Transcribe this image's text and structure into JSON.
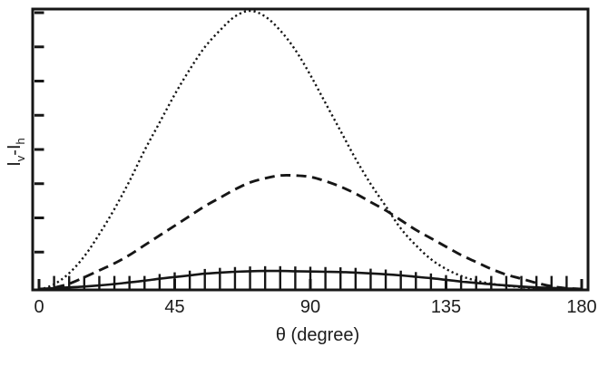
{
  "figure": {
    "background": "#ffffff",
    "line_color": "#161616",
    "text_color": "#1c1c1c"
  },
  "axes": {
    "xlabel": "θ (degree)",
    "ylabel_parts": {
      "i1": "I",
      "sub1": "v",
      "minus": "-",
      "i2": "I",
      "sub2": "h"
    },
    "x_ticks": [
      {
        "label": "0",
        "value": 0
      },
      {
        "label": "45",
        "value": 45
      },
      {
        "label": "90",
        "value": 90
      },
      {
        "label": "135",
        "value": 135
      },
      {
        "label": "180",
        "value": 180
      }
    ],
    "y_tick_count": 8,
    "y_tick_labels": []
  },
  "chart_data": {
    "type": "line",
    "title": "",
    "xlabel": "θ (degree)",
    "ylabel": "Iv-Ih",
    "xlim": [
      0,
      180
    ],
    "ylim": [
      0,
      1.0
    ],
    "x_tick_values": [
      0,
      45,
      90,
      135,
      180
    ],
    "y_axis_note": "no numeric y tick labels; values normalized to dotted-curve peak = 1.0",
    "grid": false,
    "legend": "none",
    "x": [
      0,
      5,
      10,
      15,
      20,
      25,
      30,
      35,
      40,
      45,
      50,
      55,
      60,
      65,
      70,
      75,
      80,
      85,
      90,
      95,
      100,
      105,
      110,
      115,
      120,
      125,
      130,
      135,
      140,
      145,
      150,
      155,
      160,
      165,
      170,
      175,
      180
    ],
    "series": [
      {
        "name": "dotted curve (tallest, peak near 70 deg)",
        "style": "dotted",
        "values": [
          0,
          0.02,
          0.06,
          0.12,
          0.2,
          0.29,
          0.39,
          0.5,
          0.6,
          0.7,
          0.79,
          0.87,
          0.93,
          0.98,
          1.0,
          0.98,
          0.93,
          0.86,
          0.77,
          0.67,
          0.57,
          0.47,
          0.38,
          0.3,
          0.22,
          0.16,
          0.11,
          0.075,
          0.05,
          0.033,
          0.022,
          0.015,
          0.01,
          0.007,
          0.005,
          0.003,
          0.002
        ]
      },
      {
        "name": "dashed curve (middle, peak near 80-85 deg)",
        "style": "dashed",
        "values": [
          0,
          0.008,
          0.022,
          0.045,
          0.07,
          0.095,
          0.125,
          0.16,
          0.195,
          0.23,
          0.265,
          0.3,
          0.33,
          0.36,
          0.385,
          0.4,
          0.41,
          0.41,
          0.405,
          0.39,
          0.37,
          0.345,
          0.315,
          0.285,
          0.25,
          0.215,
          0.185,
          0.155,
          0.125,
          0.1,
          0.075,
          0.055,
          0.04,
          0.025,
          0.013,
          0.006,
          0.003
        ]
      },
      {
        "name": "solid curve with error bars (lowest, flat)",
        "style": "solid",
        "values": [
          0.004,
          0.006,
          0.009,
          0.012,
          0.016,
          0.021,
          0.027,
          0.033,
          0.04,
          0.046,
          0.052,
          0.058,
          0.062,
          0.065,
          0.067,
          0.068,
          0.068,
          0.067,
          0.066,
          0.065,
          0.064,
          0.062,
          0.059,
          0.056,
          0.052,
          0.047,
          0.042,
          0.036,
          0.03,
          0.025,
          0.02,
          0.016,
          0.012,
          0.009,
          0.007,
          0.005,
          0.004
        ]
      }
    ],
    "error_bars": {
      "on_series": "solid curve with error bars (lowest, flat)",
      "x": [
        5,
        10,
        15,
        20,
        25,
        30,
        35,
        40,
        45,
        50,
        55,
        60,
        65,
        70,
        75,
        80,
        85,
        90,
        95,
        100,
        105,
        110,
        115,
        120,
        125,
        130,
        135,
        140,
        145,
        150,
        155,
        160,
        165,
        170,
        175
      ],
      "top": [
        0.05,
        0.05,
        0.05,
        0.05,
        0.05,
        0.05,
        0.05,
        0.057,
        0.063,
        0.069,
        0.075,
        0.079,
        0.082,
        0.084,
        0.085,
        0.085,
        0.084,
        0.083,
        0.082,
        0.081,
        0.079,
        0.076,
        0.073,
        0.069,
        0.064,
        0.059,
        0.053,
        0.05,
        0.05,
        0.05,
        0.05,
        0.05,
        0.05,
        0.05,
        0.05
      ],
      "bottom": 0
    }
  }
}
